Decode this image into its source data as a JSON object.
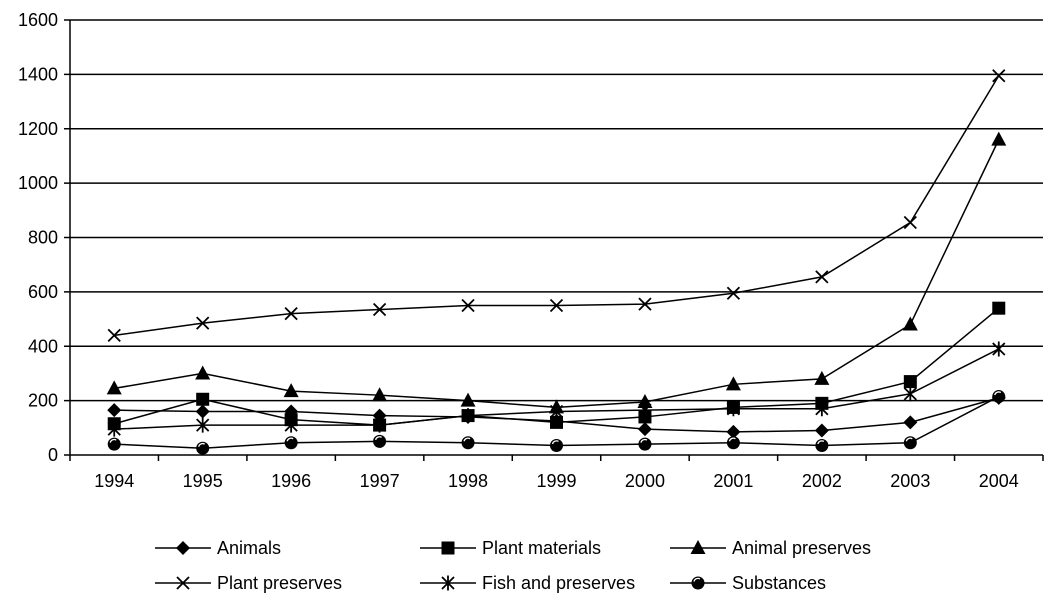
{
  "chart_data": {
    "type": "line",
    "title": "",
    "xlabel": "",
    "ylabel": "",
    "categories": [
      "1994",
      "1995",
      "1996",
      "1997",
      "1998",
      "1999",
      "2000",
      "2001",
      "2002",
      "2003",
      "2004"
    ],
    "ylim": [
      0,
      1600
    ],
    "yticks": [
      "0",
      "200",
      "400",
      "600",
      "800",
      "1000",
      "1200",
      "1400",
      "1600"
    ],
    "grid": "horizontal",
    "legend_position": "bottom",
    "series": [
      {
        "name": "Animals",
        "marker": "diamond",
        "values": [
          165,
          160,
          160,
          145,
          140,
          125,
          95,
          85,
          90,
          120,
          210
        ]
      },
      {
        "name": "Plant materials",
        "marker": "square",
        "values": [
          115,
          205,
          130,
          110,
          145,
          120,
          140,
          175,
          190,
          270,
          540
        ]
      },
      {
        "name": "Animal preserves",
        "marker": "triangle",
        "values": [
          245,
          300,
          235,
          220,
          200,
          175,
          195,
          260,
          280,
          480,
          1160
        ]
      },
      {
        "name": "Plant preserves",
        "marker": "x",
        "values": [
          440,
          485,
          520,
          535,
          550,
          550,
          555,
          595,
          655,
          855,
          1395
        ]
      },
      {
        "name": "Fish and preserves",
        "marker": "star",
        "values": [
          95,
          110,
          110,
          110,
          145,
          160,
          165,
          170,
          170,
          225,
          390
        ]
      },
      {
        "name": "Substances",
        "marker": "circle",
        "values": [
          40,
          25,
          45,
          50,
          45,
          35,
          40,
          45,
          35,
          45,
          215
        ]
      }
    ]
  }
}
